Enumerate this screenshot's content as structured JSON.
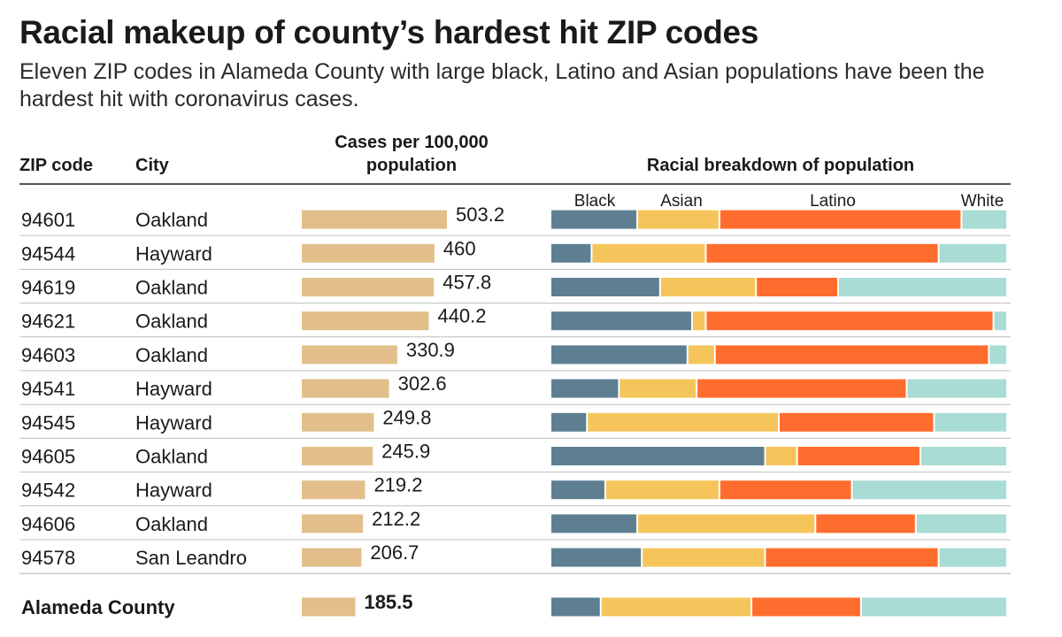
{
  "header": {
    "title": "Racial makeup of county’s hardest hit ZIP codes",
    "subtitle": "Eleven ZIP codes in Alameda County with large black, Latino and Asian populations have been the hardest hit with coronavirus cases.",
    "col_zip": "ZIP code",
    "col_city": "City",
    "col_cases": "Cases per 100,000 population",
    "col_race": "Racial breakdown of population"
  },
  "chart_data": {
    "type": "table",
    "columns": [
      "ZIP code",
      "City",
      "Cases per 100,000 population",
      "Racial breakdown of population"
    ],
    "race_legend": [
      "Black",
      "Asian",
      "Latino",
      "White"
    ],
    "colors": {
      "cases_bar": "#e2bf8a",
      "Black": "#5e7f92",
      "Asian": "#f5c55c",
      "Latino": "#ff6d2e",
      "White": "#a8dcd5",
      "row_rule": "#bfbfbf"
    },
    "rows": [
      {
        "zip": "94601",
        "city": "Oakland",
        "cases": 503.2,
        "cases_label": "503.2",
        "race": {
          "Black": 19,
          "Asian": 18,
          "Latino": 53,
          "White": 10
        }
      },
      {
        "zip": "94544",
        "city": "Hayward",
        "cases": 460,
        "cases_label": "460",
        "race": {
          "Black": 9,
          "Asian": 25,
          "Latino": 51,
          "White": 15
        }
      },
      {
        "zip": "94619",
        "city": "Oakland",
        "cases": 457.8,
        "cases_label": "457.8",
        "race": {
          "Black": 24,
          "Asian": 21,
          "Latino": 18,
          "White": 37
        }
      },
      {
        "zip": "94621",
        "city": "Oakland",
        "cases": 440.2,
        "cases_label": "440.2",
        "race": {
          "Black": 31,
          "Asian": 3,
          "Latino": 63,
          "White": 3
        }
      },
      {
        "zip": "94603",
        "city": "Oakland",
        "cases": 330.9,
        "cases_label": "330.9",
        "race": {
          "Black": 30,
          "Asian": 6,
          "Latino": 60,
          "White": 4
        }
      },
      {
        "zip": "94541",
        "city": "Hayward",
        "cases": 302.6,
        "cases_label": "302.6",
        "race": {
          "Black": 15,
          "Asian": 17,
          "Latino": 46,
          "White": 22
        }
      },
      {
        "zip": "94545",
        "city": "Hayward",
        "cases": 249.8,
        "cases_label": "249.8",
        "race": {
          "Black": 8,
          "Asian": 42,
          "Latino": 34,
          "White": 16
        }
      },
      {
        "zip": "94605",
        "city": "Oakland",
        "cases": 245.9,
        "cases_label": "245.9",
        "race": {
          "Black": 47,
          "Asian": 7,
          "Latino": 27,
          "White": 19
        }
      },
      {
        "zip": "94542",
        "city": "Hayward",
        "cases": 219.2,
        "cases_label": "219.2",
        "race": {
          "Black": 12,
          "Asian": 25,
          "Latino": 29,
          "White": 34
        }
      },
      {
        "zip": "94606",
        "city": "Oakland",
        "cases": 212.2,
        "cases_label": "212.2",
        "race": {
          "Black": 19,
          "Asian": 39,
          "Latino": 22,
          "White": 20
        }
      },
      {
        "zip": "94578",
        "city": "San Leandro",
        "cases": 206.7,
        "cases_label": "206.7",
        "race": {
          "Black": 20,
          "Asian": 27,
          "Latino": 38,
          "White": 15
        }
      }
    ],
    "total": {
      "zip": "Alameda County",
      "city": "",
      "cases": 185.5,
      "cases_label": "185.5",
      "race": {
        "Black": 11,
        "Asian": 33,
        "Latino": 24,
        "White": 32
      }
    }
  }
}
